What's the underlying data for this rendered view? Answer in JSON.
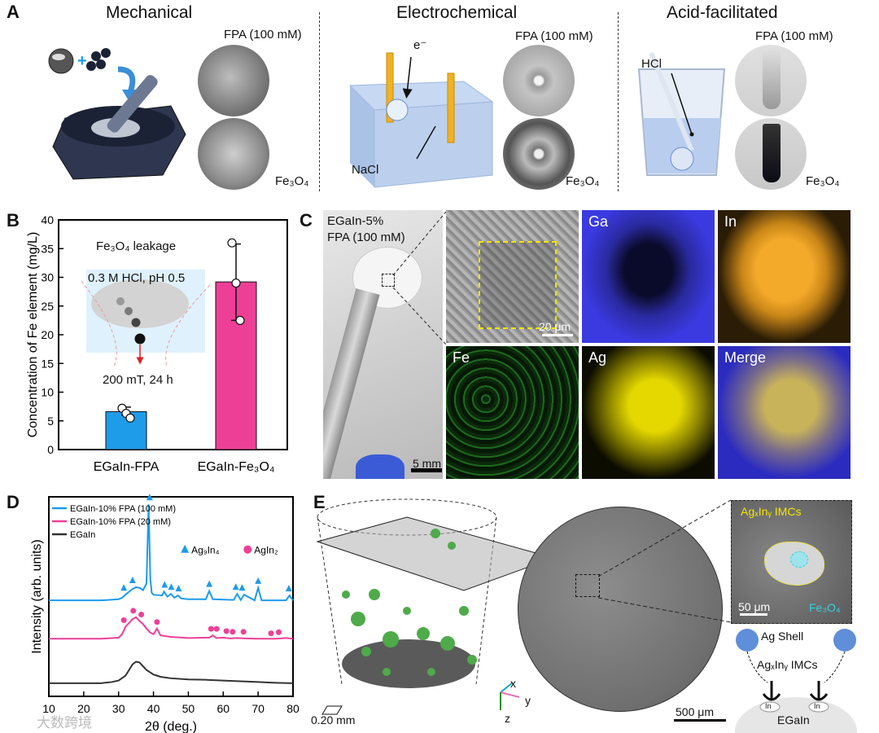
{
  "panelA": {
    "label": "A",
    "titles": [
      "Mechanical",
      "Electrochemical",
      "Acid-facilitated"
    ],
    "fpa_label": "FPA (100 mM)",
    "fe3o4_label": "Fe₃O₄",
    "nacl_label": "NaCl",
    "electron_label": "e⁻",
    "hcl_label": "HCl"
  },
  "panelB": {
    "label": "B",
    "inset_title": "Fe₃O₄ leakage",
    "inset_cond1": "0.3 M HCl, pH 0.5",
    "inset_cond2": "200 mT, 24 h"
  },
  "panelC": {
    "label": "C",
    "sample_line1": "EGaIn-5%",
    "sample_line2": "FPA (100 mM)",
    "scale_5mm": "5 mm",
    "scale_20um": "20 μm",
    "maps": [
      "Ga",
      "In",
      "Fe",
      "Ag",
      "Merge"
    ]
  },
  "panelD": {
    "label": "D",
    "peak_legend": [
      "Ag₉In₄",
      "AgIn₂"
    ]
  },
  "panelE": {
    "label": "E",
    "scale_3d": "0.20 mm",
    "scale_slice": "500 μm",
    "scale_zoom": "50 μm",
    "imc_label": "AgₓInᵧ IMCs",
    "fe3o4_label": "Fe₃O₄",
    "ag_shell": "Ag Shell",
    "imc_label2": "AgₓInᵧ IMCs",
    "egain": "EGaIn",
    "in_label": "In",
    "axes": [
      "x",
      "y",
      "z"
    ]
  },
  "watermark": "大数跨境",
  "colors": {
    "blue": "#1e9be9",
    "pink": "#ee3f97",
    "gray": "#333333",
    "yellow": "#f2e600",
    "cyan": "#2fd3e0"
  },
  "chart_data": [
    {
      "type": "bar",
      "categories": [
        "EGaIn-FPA",
        "EGaIn-Fe₃O₄"
      ],
      "values": [
        6.6,
        29.2
      ],
      "errors": [
        [
          6.0,
          7.4
        ],
        [
          22.5,
          35.8
        ]
      ],
      "points": [
        [
          7.2,
          6.3,
          5.5
        ],
        [
          36.0,
          29.0,
          22.5
        ]
      ],
      "colors": [
        "#1e9be9",
        "#ee3f97"
      ],
      "ylabel": "Concentration of Fe element (mg/L)",
      "ylim": [
        0,
        40
      ],
      "yticks": [
        0,
        5,
        10,
        15,
        20,
        25,
        30,
        35,
        40
      ]
    },
    {
      "type": "line",
      "xlabel": "2θ (deg.)",
      "ylabel": "Intensity (arb. units)",
      "xlim": [
        10,
        80
      ],
      "xticks": [
        10,
        20,
        30,
        40,
        50,
        60,
        70,
        80
      ],
      "series": [
        {
          "name": "EGaIn-10% FPA (100 mM)",
          "color": "#1e9be9",
          "offset": 2.2,
          "x": [
            10,
            25,
            30,
            31,
            32,
            33,
            34,
            35,
            36,
            37,
            38,
            38.6,
            39.1,
            39.5,
            40,
            42.5,
            43,
            44,
            45,
            46,
            47,
            48,
            50,
            55,
            56,
            57,
            63,
            64,
            65,
            66,
            69,
            70,
            71,
            75,
            78,
            79,
            80
          ],
          "y": [
            0.05,
            0.05,
            0.08,
            0.12,
            0.2,
            0.28,
            0.35,
            0.4,
            0.38,
            0.32,
            0.5,
            2.6,
            0.6,
            0.25,
            0.2,
            0.18,
            0.28,
            0.15,
            0.22,
            0.12,
            0.18,
            0.1,
            0.08,
            0.08,
            0.3,
            0.08,
            0.06,
            0.22,
            0.06,
            0.2,
            0.05,
            0.38,
            0.05,
            0.05,
            0.05,
            0.18,
            0.05
          ]
        },
        {
          "name": "EGaIn-10% FPA (20 mM)",
          "color": "#ee3f97",
          "offset": 1.2,
          "x": [
            10,
            25,
            30,
            31,
            32,
            33,
            34,
            35,
            36,
            37,
            38,
            39,
            40,
            41,
            42,
            45,
            50,
            56,
            57,
            58,
            60,
            62,
            64,
            66,
            70,
            75,
            78,
            79,
            80
          ],
          "y": [
            0.03,
            0.03,
            0.06,
            0.15,
            0.35,
            0.45,
            0.55,
            0.6,
            0.5,
            0.42,
            0.3,
            0.2,
            0.15,
            0.3,
            0.12,
            0.08,
            0.05,
            0.06,
            0.12,
            0.05,
            0.06,
            0.04,
            0.05,
            0.04,
            0.03,
            0.03,
            0.05,
            0.04,
            0.03
          ]
        },
        {
          "name": "EGaIn",
          "color": "#333333",
          "offset": 0.0,
          "x": [
            10,
            25,
            28,
            30,
            32,
            33,
            34,
            35,
            36,
            37,
            38,
            40,
            42,
            45,
            50,
            55,
            60,
            65,
            70,
            75,
            80
          ],
          "y": [
            0.05,
            0.05,
            0.08,
            0.12,
            0.25,
            0.4,
            0.55,
            0.62,
            0.6,
            0.5,
            0.4,
            0.28,
            0.22,
            0.18,
            0.15,
            0.14,
            0.12,
            0.1,
            0.08,
            0.06,
            0.05
          ]
        }
      ],
      "markers_ag9in4": [
        31.5,
        34,
        38.9,
        43.2,
        45.1,
        47.2,
        56,
        63.6,
        65.4,
        70,
        78.8
      ],
      "markers_agin2": [
        31.5,
        34.2,
        36.5,
        41,
        56.5,
        58.1,
        60.9,
        62.7,
        65.8,
        73.7,
        75.9
      ]
    }
  ]
}
